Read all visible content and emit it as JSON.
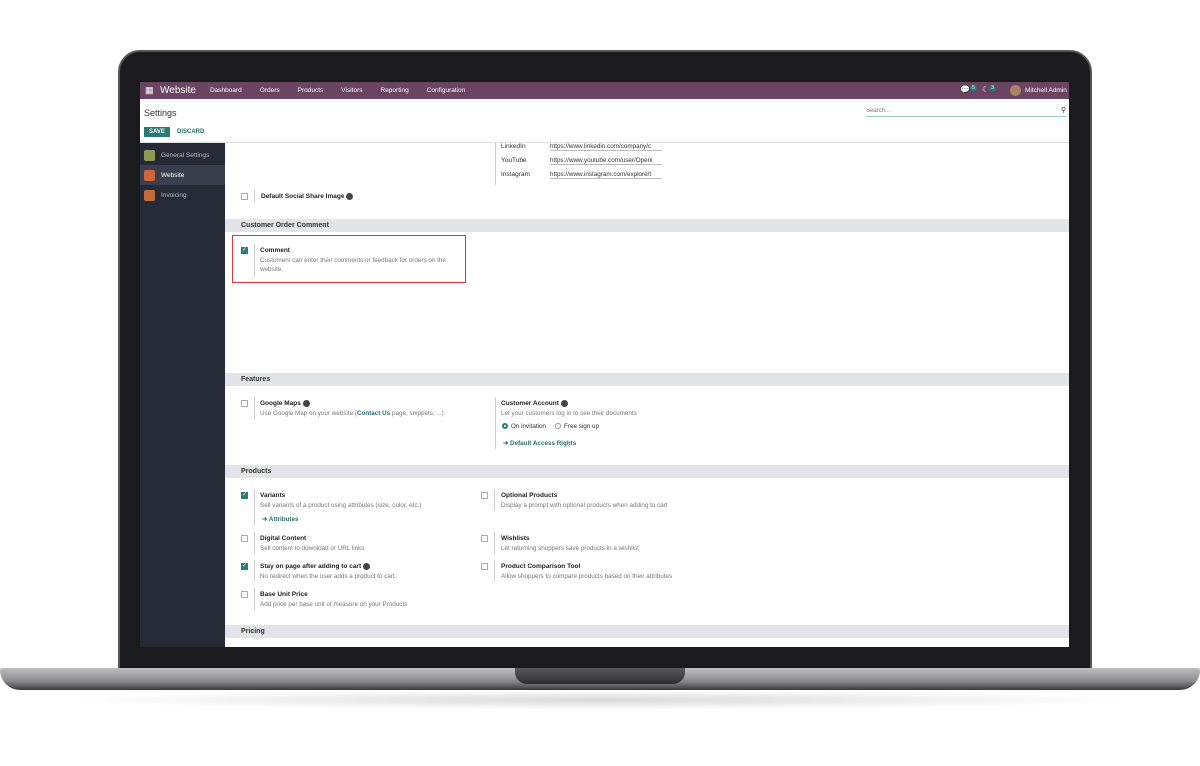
{
  "navbar": {
    "app": "Website",
    "menus": [
      "Dashboard",
      "Orders",
      "Products",
      "Visitors",
      "Reporting",
      "Configuration"
    ],
    "messages_count": "5",
    "activity_count": "3",
    "user": "Mitchell Admin"
  },
  "control_panel": {
    "title": "Settings",
    "save": "SAVE",
    "discard": "DISCARD",
    "search_placeholder": "Search..."
  },
  "sidebar": {
    "items": [
      {
        "label": "General Settings"
      },
      {
        "label": "Website",
        "active": true
      },
      {
        "label": "Invoicing"
      }
    ]
  },
  "social": [
    {
      "label": "LinkedIn",
      "value": "https://www.linkedin.com/company/c"
    },
    {
      "label": "YouTube",
      "value": "https://www.youtube.com/user/Openi"
    },
    {
      "label": "Instagram",
      "value": "https://www.instagram.com/explore/t"
    }
  ],
  "default_social_share": {
    "title": "Default Social Share Image",
    "checked": false
  },
  "sections": {
    "order_comment": "Customer Order Comment",
    "features": "Features",
    "products": "Products",
    "pricing": "Pricing"
  },
  "comment": {
    "title": "Comment",
    "desc": "Customers can enter their comments or feedback for orders on the",
    "desc2": "website.",
    "checked": true
  },
  "google_maps": {
    "title": "Google Maps",
    "desc_pre": "Use Google Map on your website (",
    "desc_link": "Contact Us",
    "desc_post": " page, snippets, ...)",
    "checked": false
  },
  "customer_account": {
    "title": "Customer Account",
    "desc": "Let your customers log in to see their documents",
    "opt1": "On invitation",
    "opt2": "Free sign up",
    "selected": "On invitation",
    "link": "Default Access Rights"
  },
  "products": {
    "variants": {
      "title": "Variants",
      "desc": "Sell variants of a product using attributes (size, color, etc.)",
      "link": "Attributes",
      "checked": true
    },
    "optional": {
      "title": "Optional Products",
      "desc": "Display a prompt with optional products when adding to cart",
      "checked": false
    },
    "digital": {
      "title": "Digital Content",
      "desc": "Sell content to download or URL links",
      "checked": false
    },
    "wishlists": {
      "title": "Wishlists",
      "desc": "Let returning shoppers save products in a wishlist",
      "checked": false
    },
    "stay": {
      "title": "Stay on page after adding to cart",
      "desc": "No redirect when the user adds a product to cart.",
      "checked": true
    },
    "comparison": {
      "title": "Product Comparison Tool",
      "desc": "Allow shoppers to compare products based on their attributes",
      "checked": false
    },
    "base_unit": {
      "title": "Base Unit Price",
      "desc": "Add price per base unit of measure on your Products",
      "checked": false
    }
  },
  "colors": {
    "navbar": "#6b4463",
    "accent": "#2a7a78",
    "highlight": "#d9363e"
  }
}
